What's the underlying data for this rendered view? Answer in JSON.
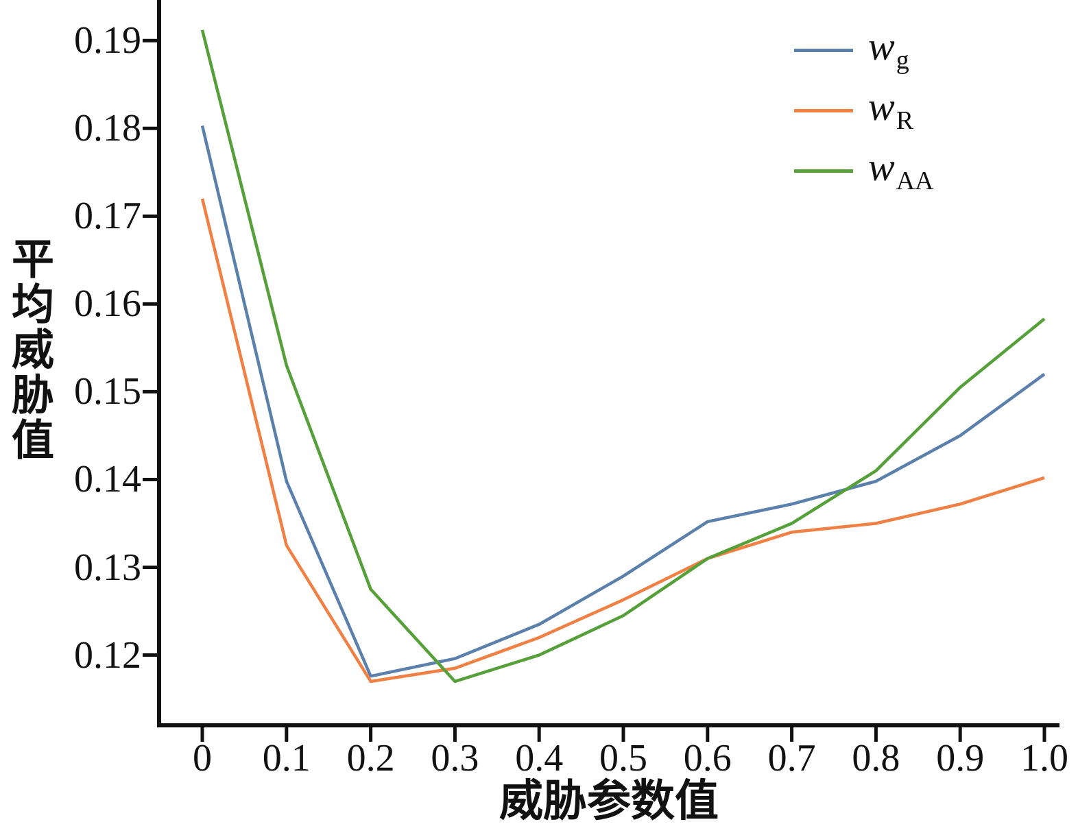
{
  "chart_data": {
    "type": "line",
    "title": "",
    "xlabel": "威胁参数值",
    "ylabel": "平均威胁值",
    "x": [
      0,
      0.1,
      0.2,
      0.3,
      0.4,
      0.5,
      0.6,
      0.7,
      0.8,
      0.9,
      1.0
    ],
    "x_ticks": [
      "0",
      "0.1",
      "0.2",
      "0.3",
      "0.4",
      "0.5",
      "0.6",
      "0.7",
      "0.8",
      "0.9",
      "1.0"
    ],
    "x_tick_values": [
      0,
      0.1,
      0.2,
      0.3,
      0.4,
      0.5,
      0.6,
      0.7,
      0.8,
      0.9,
      1.0
    ],
    "y_ticks": [
      0.12,
      0.13,
      0.14,
      0.15,
      0.16,
      0.17,
      0.18,
      0.19
    ],
    "y_tick_labels": [
      "0.12",
      "0.13",
      "0.14",
      "0.15",
      "0.16",
      "0.17",
      "0.18",
      "0.19"
    ],
    "xlim": [
      -0.05,
      1.02
    ],
    "ylim": [
      0.112,
      0.194
    ],
    "grid": false,
    "legend_position": "top-right",
    "axis_color": "#111111",
    "series": [
      {
        "name": "wg",
        "symbol": "w",
        "subscript": "g",
        "color": "#5b80ab",
        "values": [
          0.1803,
          0.1398,
          0.1176,
          0.1196,
          0.1235,
          0.129,
          0.1352,
          0.1372,
          0.1398,
          0.145,
          0.152
        ]
      },
      {
        "name": "wR",
        "symbol": "w",
        "subscript": "R",
        "color": "#f08043",
        "values": [
          0.172,
          0.1325,
          0.117,
          0.1185,
          0.122,
          0.1263,
          0.131,
          0.134,
          0.135,
          0.1372,
          0.1402
        ]
      },
      {
        "name": "wAA",
        "symbol": "w",
        "subscript": "AA",
        "color": "#55a039",
        "values": [
          0.1912,
          0.153,
          0.1275,
          0.117,
          0.12,
          0.1245,
          0.131,
          0.135,
          0.141,
          0.1505,
          0.1583
        ]
      }
    ]
  }
}
